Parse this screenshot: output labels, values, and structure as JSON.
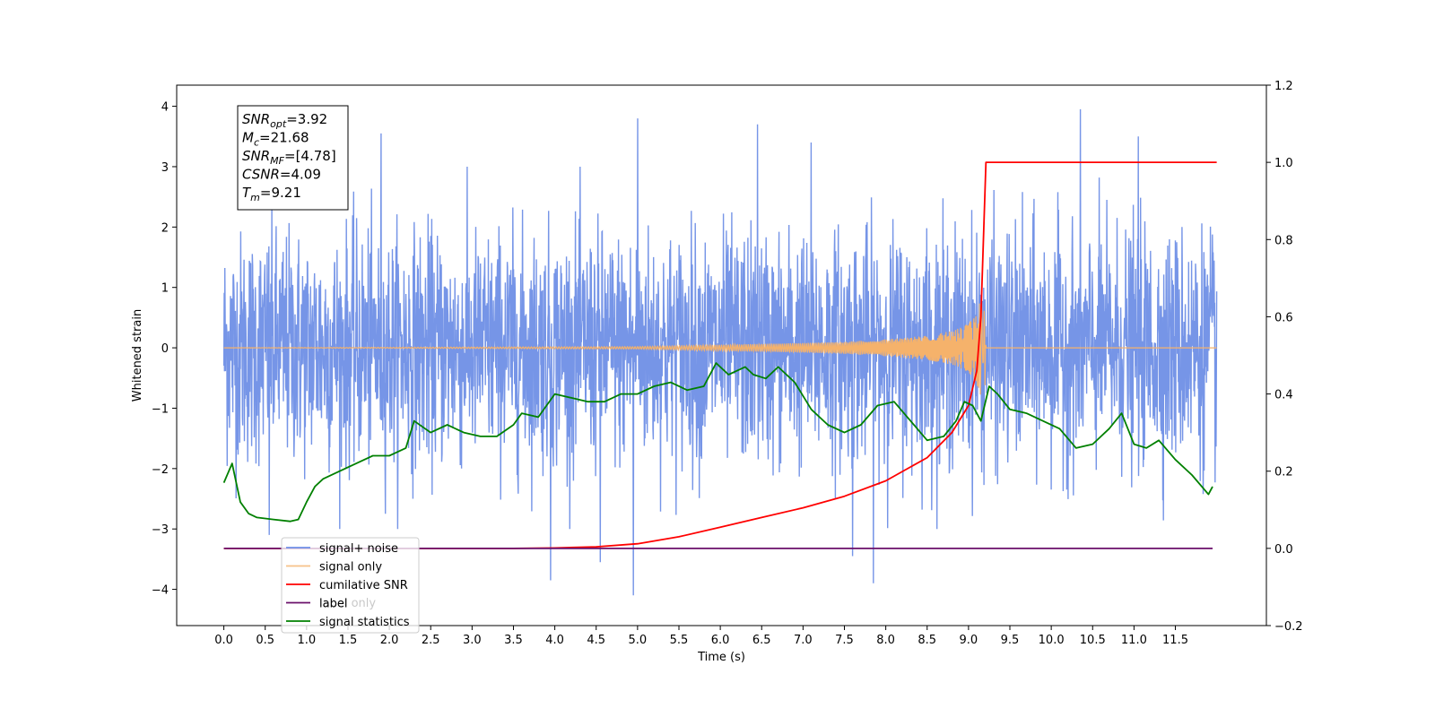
{
  "chart_data": {
    "type": "line",
    "xlabel": "Time (s)",
    "ylabel": "Whitened strain",
    "xlim": [
      -0.57,
      12.6
    ],
    "ylim": [
      -4.6,
      4.35
    ],
    "y2lim": [
      -0.2,
      1.2
    ],
    "x_ticks": [
      "0.0",
      "0.5",
      "1.0",
      "1.5",
      "2.0",
      "2.5",
      "3.0",
      "3.5",
      "4.0",
      "4.5",
      "5.0",
      "5.5",
      "6.0",
      "6.5",
      "7.0",
      "7.5",
      "8.0",
      "8.5",
      "9.0",
      "9.5",
      "10.0",
      "10.5",
      "11.0",
      "11.5"
    ],
    "y_ticks": [
      "4",
      "3",
      "2",
      "1",
      "0",
      "−1",
      "−2",
      "−3",
      "−4"
    ],
    "y2_ticks": [
      "1.2",
      "1.0",
      "0.8",
      "0.6",
      "0.4",
      "0.2",
      "0.0",
      "−0.2"
    ],
    "grid": false,
    "legend_position": "lower-left",
    "legend": [
      "signal+ noise",
      "signal only",
      "cumilative SNR",
      "label",
      "signal statistics"
    ],
    "legend_hidden_text": "label only",
    "annotation_box": [
      {
        "sym": "SNR",
        "sub": "opt",
        "val": "=3.92"
      },
      {
        "sym": "M",
        "sub": "c",
        "val": "=21.68"
      },
      {
        "sym": "SNR",
        "sub": "MF",
        "val": "=[4.78]"
      },
      {
        "sym": "CSNR",
        "sub": "",
        "val": "=4.09"
      },
      {
        "sym": "T",
        "sub": "m",
        "val": "=9.21"
      }
    ],
    "colors": {
      "signal_noise": "#6f8fe6",
      "signal_only": "#f5b26b",
      "cumulative_snr": "#ff0000",
      "label": "#6a0f6a",
      "signal_statistics": "#008000"
    },
    "series": [
      {
        "name": "signal+ noise",
        "axis": "left",
        "description_x_range": [
          0.0,
          12.0
        ],
        "noise_band": [
          -2.6,
          2.6
        ],
        "peaks": [
          {
            "x": 1.9,
            "y": 3.55
          },
          {
            "x": 5.0,
            "y": 3.8
          },
          {
            "x": 6.45,
            "y": 3.7
          },
          {
            "x": 7.1,
            "y": 3.4
          },
          {
            "x": 10.35,
            "y": 3.95
          },
          {
            "x": 11.05,
            "y": 3.5
          },
          {
            "x": 4.95,
            "y": -4.1
          },
          {
            "x": 3.95,
            "y": -3.85
          },
          {
            "x": 7.85,
            "y": -3.9
          },
          {
            "x": 7.6,
            "y": -3.45
          },
          {
            "x": 4.55,
            "y": -3.55
          },
          {
            "x": 0.55,
            "y": -3.1
          }
        ]
      },
      {
        "name": "signal only",
        "axis": "left",
        "x": [
          0.0,
          5.0,
          6.0,
          7.0,
          7.5,
          8.0,
          8.5,
          8.8,
          9.0,
          9.1,
          9.15,
          9.2,
          9.21,
          12.0
        ],
        "amplitude": [
          0.0,
          0.02,
          0.05,
          0.08,
          0.1,
          0.14,
          0.2,
          0.28,
          0.4,
          0.6,
          0.8,
          0.7,
          0.0,
          0.0
        ],
        "merger_time": 9.21
      },
      {
        "name": "cumilative SNR",
        "axis": "right",
        "x": [
          0.0,
          3.5,
          4.0,
          4.5,
          5.0,
          5.5,
          6.0,
          6.5,
          7.0,
          7.5,
          8.0,
          8.5,
          8.8,
          9.0,
          9.1,
          9.15,
          9.18,
          9.21,
          12.0
        ],
        "y": [
          0.0,
          0.0,
          0.001,
          0.004,
          0.012,
          0.03,
          0.055,
          0.08,
          0.105,
          0.135,
          0.175,
          0.235,
          0.3,
          0.37,
          0.46,
          0.6,
          0.8,
          1.0,
          1.0
        ]
      },
      {
        "name": "label",
        "axis": "right",
        "x": [
          0.0,
          11.95
        ],
        "y": [
          0.0,
          0.0
        ]
      },
      {
        "name": "signal statistics",
        "axis": "right",
        "x": [
          0.0,
          0.1,
          0.2,
          0.3,
          0.4,
          0.6,
          0.8,
          0.9,
          1.0,
          1.1,
          1.2,
          1.4,
          1.6,
          1.8,
          2.0,
          2.2,
          2.3,
          2.5,
          2.7,
          2.9,
          3.1,
          3.3,
          3.5,
          3.6,
          3.8,
          4.0,
          4.2,
          4.4,
          4.6,
          4.8,
          5.0,
          5.2,
          5.4,
          5.6,
          5.8,
          5.95,
          6.1,
          6.2,
          6.3,
          6.4,
          6.55,
          6.7,
          6.9,
          7.1,
          7.3,
          7.5,
          7.7,
          7.9,
          8.1,
          8.3,
          8.5,
          8.7,
          8.85,
          8.95,
          9.05,
          9.15,
          9.25,
          9.35,
          9.5,
          9.7,
          9.9,
          10.1,
          10.3,
          10.5,
          10.7,
          10.85,
          11.0,
          11.15,
          11.3,
          11.5,
          11.7,
          11.9,
          11.95
        ],
        "y": [
          0.17,
          0.22,
          0.12,
          0.09,
          0.08,
          0.075,
          0.07,
          0.075,
          0.12,
          0.16,
          0.18,
          0.2,
          0.22,
          0.24,
          0.24,
          0.26,
          0.33,
          0.3,
          0.32,
          0.3,
          0.29,
          0.29,
          0.32,
          0.35,
          0.34,
          0.4,
          0.39,
          0.38,
          0.38,
          0.4,
          0.4,
          0.42,
          0.43,
          0.41,
          0.42,
          0.48,
          0.45,
          0.46,
          0.47,
          0.45,
          0.44,
          0.47,
          0.43,
          0.36,
          0.32,
          0.3,
          0.32,
          0.37,
          0.38,
          0.33,
          0.28,
          0.29,
          0.33,
          0.38,
          0.37,
          0.33,
          0.42,
          0.4,
          0.36,
          0.35,
          0.33,
          0.31,
          0.26,
          0.27,
          0.31,
          0.35,
          0.27,
          0.26,
          0.28,
          0.23,
          0.19,
          0.14,
          0.16
        ]
      }
    ]
  }
}
